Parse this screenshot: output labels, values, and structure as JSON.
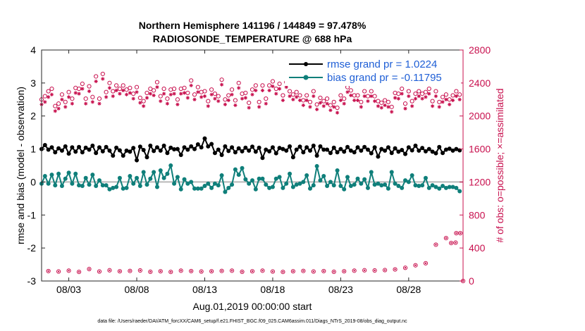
{
  "chart_data": {
    "type": "line",
    "title_line1": "Northern Hemisphere 141196 / 144849 = 97.478%",
    "title_line2": "RADIOSONDE_TEMPERATURE @ 688 hPa",
    "xlabel": "Aug.01,2019 00:00:00 start",
    "ylabel_left": "rmse and bias (model - observation)",
    "ylabel_right": "# of obs: o=possible; ×=assimilated",
    "xlim": [
      0,
      124
    ],
    "ylim_left": [
      -3,
      4
    ],
    "ylim_right": [
      0,
      2800
    ],
    "x_ticks": [
      {
        "pos": 8,
        "label": "08/03"
      },
      {
        "pos": 28,
        "label": "08/08"
      },
      {
        "pos": 48,
        "label": "08/13"
      },
      {
        "pos": 68,
        "label": "08/18"
      },
      {
        "pos": 88,
        "label": "08/23"
      },
      {
        "pos": 108,
        "label": "08/28"
      }
    ],
    "y_ticks_left": [
      {
        "value": -3,
        "label": "-3"
      },
      {
        "value": -2,
        "label": "-2"
      },
      {
        "value": -1,
        "label": "-1"
      },
      {
        "value": 0,
        "label": "0"
      },
      {
        "value": 1,
        "label": "1"
      },
      {
        "value": 2,
        "label": "2"
      },
      {
        "value": 3,
        "label": "3"
      },
      {
        "value": 4,
        "label": "4"
      }
    ],
    "y_ticks_right": [
      {
        "value": 0,
        "label": "0"
      },
      {
        "value": 400,
        "label": "400"
      },
      {
        "value": 800,
        "label": "800"
      },
      {
        "value": 1200,
        "label": "1200"
      },
      {
        "value": 1600,
        "label": "1600"
      },
      {
        "value": 2000,
        "label": "2000"
      },
      {
        "value": 2400,
        "label": "2400"
      },
      {
        "value": 2800,
        "label": "2800"
      }
    ],
    "zero_line": 0,
    "series": [
      {
        "name": "rmse",
        "legend_label": "rmse grand pr = 1.0224",
        "color": "#000000",
        "axis": "left",
        "x": [
          0,
          1,
          2,
          3,
          4,
          5,
          6,
          7,
          8,
          9,
          10,
          11,
          12,
          13,
          14,
          15,
          16,
          17,
          18,
          19,
          20,
          21,
          22,
          23,
          24,
          25,
          26,
          27,
          28,
          29,
          30,
          31,
          32,
          33,
          34,
          35,
          36,
          37,
          38,
          39,
          40,
          41,
          42,
          43,
          44,
          45,
          46,
          47,
          48,
          49,
          50,
          51,
          52,
          53,
          54,
          55,
          56,
          57,
          58,
          59,
          60,
          61,
          62,
          63,
          64,
          65,
          66,
          67,
          68,
          69,
          70,
          71,
          72,
          73,
          74,
          75,
          76,
          77,
          78,
          79,
          80,
          81,
          82,
          83,
          84,
          85,
          86,
          87,
          88,
          89,
          90,
          91,
          92,
          93,
          94,
          95,
          96,
          97,
          98,
          99,
          100,
          101,
          102,
          103,
          104,
          105,
          106,
          107,
          108,
          109,
          110,
          111,
          112,
          113,
          114,
          115,
          116,
          117,
          118,
          119,
          120,
          121,
          122,
          123
        ],
        "values": [
          1.0,
          1.12,
          0.98,
          1.05,
          0.9,
          1.02,
          0.95,
          1.08,
          0.86,
          1.05,
          0.92,
          1.06,
          0.9,
          1.04,
          0.98,
          1.1,
          0.88,
          1.05,
          0.93,
          1.06,
          0.95,
          0.8,
          1.04,
          0.96,
          0.8,
          0.95,
          0.92,
          1.03,
          0.66,
          1.07,
          0.97,
          0.75,
          1.1,
          0.94,
          1.05,
          0.95,
          1.1,
          0.88,
          1.04,
          0.99,
          1.0,
          0.82,
          1.05,
          0.98,
          1.08,
          1.0,
          1.14,
          1.05,
          1.32,
          1.08,
          1.15,
          0.88,
          0.98,
          0.82,
          1.08,
          0.94,
          1.05,
          0.9,
          1.02,
          0.93,
          1.04,
          0.95,
          1.07,
          0.92,
          1.04,
          0.73,
          0.98,
          0.93,
          1.05,
          0.87,
          1.03,
          1.0,
          0.95,
          1.08,
          0.75,
          0.98,
          1.07,
          0.9,
          1.05,
          0.95,
          1.1,
          0.8,
          1.08,
          0.98,
          0.98,
          0.88,
          1.04,
          0.9,
          1.0,
          0.92,
          1.06,
          0.95,
          0.9,
          1.05,
          0.95,
          1.06,
          0.98,
          0.87,
          1.05,
          0.77,
          1.0,
          0.95,
          1.05,
          0.88,
          1.02,
          0.92,
          0.97,
          0.85,
          1.05,
          0.96,
          1.1,
          0.95,
          1.03,
          0.93,
          1.0,
          0.92,
          0.87,
          1.06,
          0.88,
          0.98,
          1.01,
          0.95,
          1.0,
          0.96
        ]
      },
      {
        "name": "bias",
        "legend_label": "bias grand pr = -0.11795",
        "color": "#0f7f7a",
        "axis": "left",
        "x": [
          0,
          1,
          2,
          3,
          4,
          5,
          6,
          7,
          8,
          9,
          10,
          11,
          12,
          13,
          14,
          15,
          16,
          17,
          18,
          19,
          20,
          21,
          22,
          23,
          24,
          25,
          26,
          27,
          28,
          29,
          30,
          31,
          32,
          33,
          34,
          35,
          36,
          37,
          38,
          39,
          40,
          41,
          42,
          43,
          44,
          45,
          46,
          47,
          48,
          49,
          50,
          51,
          52,
          53,
          54,
          55,
          56,
          57,
          58,
          59,
          60,
          61,
          62,
          63,
          64,
          65,
          66,
          67,
          68,
          69,
          70,
          71,
          72,
          73,
          74,
          75,
          76,
          77,
          78,
          79,
          80,
          81,
          82,
          83,
          84,
          85,
          86,
          87,
          88,
          89,
          90,
          91,
          92,
          93,
          94,
          95,
          96,
          97,
          98,
          99,
          100,
          101,
          102,
          103,
          104,
          105,
          106,
          107,
          108,
          109,
          110,
          111,
          112,
          113,
          114,
          115,
          116,
          117,
          118,
          119,
          120,
          121,
          122,
          123
        ],
        "values": [
          -0.05,
          0.18,
          -0.05,
          0.22,
          -0.1,
          0.25,
          -0.12,
          0.1,
          0.28,
          -0.05,
          0.25,
          -0.1,
          -0.12,
          0.12,
          -0.08,
          0.22,
          -0.12,
          0.05,
          -0.1,
          -0.1,
          -0.22,
          -0.18,
          -0.15,
          0.12,
          -0.2,
          -0.18,
          0.18,
          -0.05,
          0.12,
          -0.12,
          0.3,
          -0.08,
          0.1,
          0.3,
          -0.15,
          0.35,
          0.12,
          0.25,
          0.5,
          -0.05,
          0.15,
          -0.22,
          0.08,
          -0.05,
          0.0,
          -0.2,
          -0.2,
          -0.2,
          -0.12,
          -0.05,
          -0.18,
          -0.05,
          -0.1,
          0.2,
          -0.3,
          -0.18,
          -0.08,
          0.38,
          0.22,
          0.42,
          0.08,
          -0.05,
          0.05,
          -0.22,
          0.1,
          0.1,
          -0.08,
          -0.18,
          -0.15,
          0.1,
          0.15,
          -0.18,
          -0.05,
          0.25,
          -0.15,
          -0.08,
          -0.05,
          0.0,
          0.2,
          -0.2,
          -0.1,
          0.48,
          0.05,
          0.18,
          -0.12,
          0.0,
          -0.1,
          0.35,
          -0.12,
          -0.22,
          0.15,
          -0.12,
          -0.08,
          0.1,
          -0.05,
          0.08,
          -0.18,
          0.3,
          -0.08,
          -0.05,
          -0.1,
          -0.08,
          -0.2,
          0.3,
          -0.05,
          -0.12,
          -0.18,
          0.05,
          0.0,
          0.2,
          -0.1,
          -0.12,
          -0.1,
          0.12,
          -0.18,
          -0.1,
          -0.15,
          -0.2,
          -0.12,
          -0.18,
          -0.15,
          -0.15,
          -0.18,
          -0.28
        ]
      },
      {
        "name": "possible",
        "marker": "o",
        "color": "#c8104e",
        "axis": "right",
        "x": [
          0,
          1,
          2,
          3,
          4,
          5,
          6,
          7,
          8,
          9,
          10,
          11,
          12,
          13,
          14,
          15,
          16,
          17,
          18,
          19,
          20,
          21,
          22,
          23,
          24,
          25,
          26,
          27,
          28,
          29,
          30,
          31,
          32,
          33,
          34,
          35,
          36,
          37,
          38,
          39,
          40,
          41,
          42,
          43,
          44,
          45,
          46,
          47,
          48,
          49,
          50,
          51,
          52,
          53,
          54,
          55,
          56,
          57,
          58,
          59,
          60,
          61,
          62,
          63,
          64,
          65,
          66,
          67,
          68,
          69,
          70,
          71,
          72,
          73,
          74,
          75,
          76,
          77,
          78,
          79,
          80,
          81,
          82,
          83,
          84,
          85,
          86,
          87,
          88,
          89,
          90,
          91,
          92,
          93,
          94,
          95,
          96,
          97,
          98,
          99,
          100,
          101,
          102,
          103,
          104,
          105,
          106,
          107,
          108,
          109,
          110,
          111,
          112,
          113,
          114,
          115,
          116,
          117,
          118,
          119,
          120,
          121,
          122,
          123
        ],
        "values": [
          2200,
          2240,
          2300,
          2330,
          2120,
          2150,
          2260,
          2170,
          2290,
          2210,
          2340,
          2330,
          2390,
          2210,
          2360,
          2230,
          2480,
          2210,
          2510,
          2290,
          2400,
          2300,
          2370,
          2330,
          2370,
          2320,
          2340,
          2270,
          2350,
          2220,
          2180,
          2280,
          2330,
          2310,
          2410,
          2240,
          2330,
          2210,
          2320,
          2330,
          2200,
          2330,
          2340,
          2280,
          2430,
          2260,
          2350,
          2290,
          2300,
          2180,
          2320,
          2270,
          2240,
          2440,
          2200,
          2250,
          2320,
          2190,
          2400,
          2270,
          2280,
          2160,
          2320,
          2370,
          2170,
          2370,
          2210,
          2370,
          2420,
          2330,
          2390,
          2250,
          2410,
          2300,
          2260,
          2290,
          2250,
          2190,
          2250,
          2170,
          2300,
          2140,
          2220,
          2180,
          2210,
          2130,
          2170,
          2100,
          2250,
          2210,
          2350,
          2310,
          2250,
          2250,
          2170,
          2300,
          2240,
          2300,
          2240,
          2180,
          2160,
          2190,
          2170,
          2110,
          2280,
          2270,
          2330,
          2150,
          2300,
          2180,
          2270,
          2300,
          2270,
          2290,
          2330,
          2180,
          2300,
          2170,
          2230,
          2260,
          2200,
          2250,
          2300,
          2260
        ],
        "late_values": [
          114,
          120,
          116,
          127,
          132,
          130,
          145,
          160,
          185,
          210,
          460,
          510,
          520,
          575,
          590,
          575,
          600,
          660,
          720,
          0
        ]
      },
      {
        "name": "assimilated",
        "marker": "*",
        "color": "#c8104e",
        "axis": "right",
        "x": [
          0,
          1,
          2,
          3,
          4,
          5,
          6,
          7,
          8,
          9,
          10,
          11,
          12,
          13,
          14,
          15,
          16,
          17,
          18,
          19,
          20,
          21,
          22,
          23,
          24,
          25,
          26,
          27,
          28,
          29,
          30,
          31,
          32,
          33,
          34,
          35,
          36,
          37,
          38,
          39,
          40,
          41,
          42,
          43,
          44,
          45,
          46,
          47,
          48,
          49,
          50,
          51,
          52,
          53,
          54,
          55,
          56,
          57,
          58,
          59,
          60,
          61,
          62,
          63,
          64,
          65,
          66,
          67,
          68,
          69,
          70,
          71,
          72,
          73,
          74,
          75,
          76,
          77,
          78,
          79,
          80,
          81,
          82,
          83,
          84,
          85,
          86,
          87,
          88,
          89,
          90,
          91,
          92,
          93,
          94,
          95,
          96,
          97,
          98,
          99,
          100,
          101,
          102,
          103,
          104,
          105,
          106,
          107,
          108,
          109,
          110,
          111,
          112,
          113,
          114,
          115,
          116,
          117,
          118,
          119,
          120,
          121,
          122,
          123
        ],
        "values": [
          2140,
          2170,
          2230,
          2260,
          2060,
          2090,
          2200,
          2110,
          2230,
          2150,
          2280,
          2270,
          2330,
          2150,
          2300,
          2170,
          2420,
          2150,
          2450,
          2230,
          2340,
          2240,
          2310,
          2270,
          2310,
          2260,
          2280,
          2210,
          2290,
          2160,
          2120,
          2220,
          2270,
          2250,
          2350,
          2180,
          2270,
          2150,
          2260,
          2270,
          2140,
          2270,
          2280,
          2220,
          2370,
          2200,
          2290,
          2230,
          2240,
          2120,
          2260,
          2210,
          2180,
          2380,
          2140,
          2190,
          2260,
          2130,
          2340,
          2210,
          2220,
          2100,
          2260,
          2310,
          2110,
          2310,
          2150,
          2310,
          2360,
          2270,
          2330,
          2190,
          2350,
          2240,
          2200,
          2230,
          2190,
          2130,
          2190,
          2110,
          2240,
          2080,
          2160,
          2120,
          2150,
          2070,
          2110,
          2040,
          2190,
          2150,
          2290,
          2250,
          2190,
          2190,
          2110,
          2240,
          2180,
          2240,
          2180,
          2120,
          2100,
          2130,
          2110,
          2050,
          2220,
          2210,
          2270,
          2090,
          2240,
          2120,
          2210,
          2240,
          2210,
          2230,
          2270,
          2120,
          2240,
          2110,
          2170,
          2200,
          2140,
          2190,
          2240,
          2200
        ]
      }
    ]
  },
  "footer": {
    "data_file": "data file: /Users/raeder/DAI/ATM_forcXX/CAM6_setup/f.e21.FHIST_BGC.f09_025.CAM6assim.011/Diags_NTrS_2019-08/obs_diag_output.nc"
  },
  "colors": {
    "rmse": "#000000",
    "bias": "#0f7f7a",
    "obs": "#c8104e",
    "legend_text": "#1f5fd6",
    "zero_line": "#b8b8b8"
  }
}
